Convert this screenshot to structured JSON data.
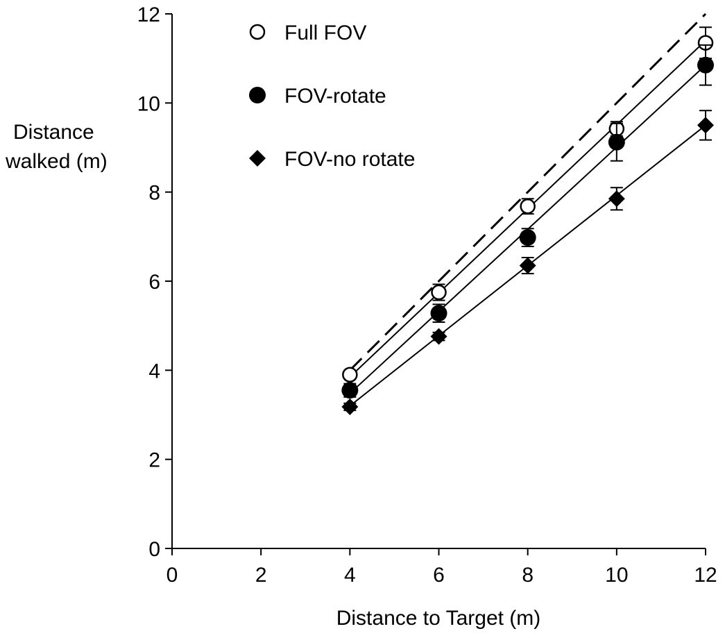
{
  "chart_data": {
    "type": "scatter",
    "title": "",
    "xlabel": "Distance to Target (m)",
    "ylabel_lines": [
      "Distance",
      "walked (m)"
    ],
    "xlim": [
      0,
      12
    ],
    "ylim": [
      0,
      12
    ],
    "xticks": [
      0,
      2,
      4,
      6,
      8,
      10,
      12
    ],
    "yticks": [
      0,
      2,
      4,
      6,
      8,
      10,
      12
    ],
    "grid": false,
    "legend_position": "top-left",
    "reference_line": {
      "style": "dashed",
      "x": [
        4,
        12
      ],
      "y": [
        4,
        12
      ]
    },
    "x": [
      4,
      6,
      8,
      10,
      12
    ],
    "series": [
      {
        "name": "Full FOV",
        "marker": "open-circle",
        "y": [
          3.9,
          5.75,
          7.68,
          9.42,
          11.35
        ],
        "err": [
          0.08,
          0.18,
          0.17,
          0.16,
          0.35
        ],
        "fit": [
          3.85,
          11.4
        ]
      },
      {
        "name": "FOV-rotate",
        "marker": "filled-circle",
        "y": [
          3.55,
          5.28,
          6.98,
          9.12,
          10.85
        ],
        "err": [
          0.15,
          0.2,
          0.2,
          0.42,
          0.45
        ],
        "fit": [
          3.48,
          10.85
        ]
      },
      {
        "name": "FOV-no rotate",
        "marker": "filled-diamond",
        "y": [
          3.18,
          4.76,
          6.35,
          7.85,
          9.5
        ],
        "err": [
          0.08,
          0.09,
          0.18,
          0.25,
          0.33
        ],
        "fit": [
          3.2,
          9.5
        ]
      }
    ]
  }
}
